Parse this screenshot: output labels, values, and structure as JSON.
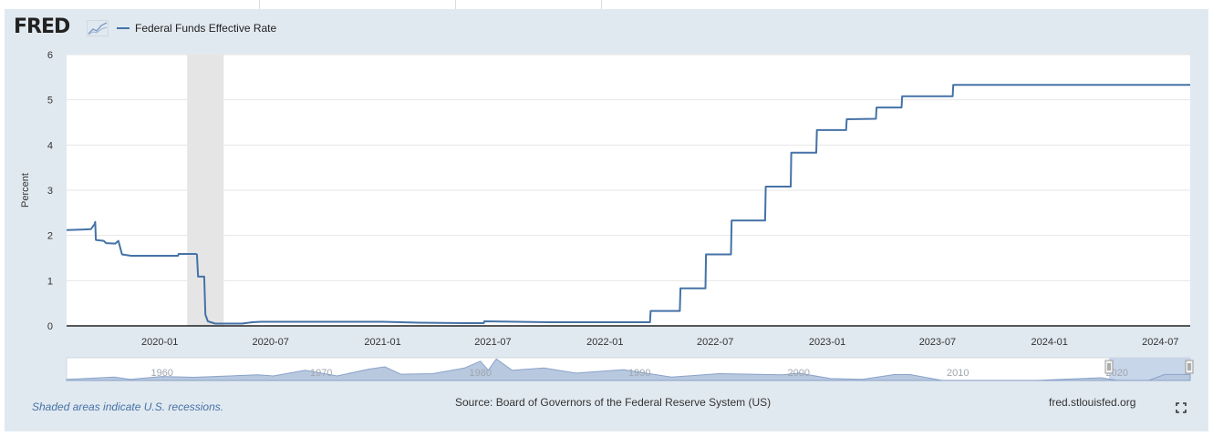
{
  "header": {
    "logo_text": "FRED",
    "logo_icon": "fred-chart-icon"
  },
  "chart_data": {
    "type": "line",
    "title": "",
    "xlabel": "",
    "ylabel": "Percent",
    "ylim": [
      0,
      6
    ],
    "y_ticks": [
      "0",
      "1",
      "2",
      "3",
      "4",
      "5",
      "6"
    ],
    "x_ticks": [
      "2020-01",
      "2020-07",
      "2021-01",
      "2021-07",
      "2022-01",
      "2022-07",
      "2023-01",
      "2023-07",
      "2024-01",
      "2024-07"
    ],
    "series": [
      {
        "name": "Federal Funds Effective Rate",
        "color": "#4572a7",
        "points": [
          [
            "2019-08-01",
            2.12
          ],
          [
            "2019-08-25",
            2.13
          ],
          [
            "2019-09-10",
            2.14
          ],
          [
            "2019-09-16",
            2.25
          ],
          [
            "2019-09-17",
            2.3
          ],
          [
            "2019-09-18",
            1.9
          ],
          [
            "2019-10-01",
            1.88
          ],
          [
            "2019-10-05",
            1.83
          ],
          [
            "2019-10-20",
            1.82
          ],
          [
            "2019-10-25",
            1.88
          ],
          [
            "2019-10-31",
            1.58
          ],
          [
            "2019-11-15",
            1.55
          ],
          [
            "2019-12-15",
            1.55
          ],
          [
            "2020-01-31",
            1.55
          ],
          [
            "2020-02-01",
            1.59
          ],
          [
            "2020-02-29",
            1.59
          ],
          [
            "2020-03-02",
            1.58
          ],
          [
            "2020-03-04",
            1.09
          ],
          [
            "2020-03-14",
            1.09
          ],
          [
            "2020-03-16",
            0.25
          ],
          [
            "2020-03-20",
            0.1
          ],
          [
            "2020-04-01",
            0.05
          ],
          [
            "2020-05-15",
            0.05
          ],
          [
            "2020-06-01",
            0.08
          ],
          [
            "2020-06-15",
            0.09
          ],
          [
            "2020-09-30",
            0.09
          ],
          [
            "2020-10-15",
            0.09
          ],
          [
            "2021-01-01",
            0.09
          ],
          [
            "2021-03-01",
            0.07
          ],
          [
            "2021-05-20",
            0.06
          ],
          [
            "2021-06-16",
            0.06
          ],
          [
            "2021-06-17",
            0.1
          ],
          [
            "2021-09-30",
            0.08
          ],
          [
            "2022-03-16",
            0.08
          ],
          [
            "2022-03-17",
            0.33
          ],
          [
            "2022-05-04",
            0.33
          ],
          [
            "2022-05-05",
            0.83
          ],
          [
            "2022-06-15",
            0.83
          ],
          [
            "2022-06-16",
            1.58
          ],
          [
            "2022-07-27",
            1.58
          ],
          [
            "2022-07-28",
            2.33
          ],
          [
            "2022-09-21",
            2.33
          ],
          [
            "2022-09-22",
            3.08
          ],
          [
            "2022-11-02",
            3.08
          ],
          [
            "2022-11-03",
            3.83
          ],
          [
            "2022-12-14",
            3.83
          ],
          [
            "2022-12-15",
            4.33
          ],
          [
            "2023-02-01",
            4.33
          ],
          [
            "2023-02-02",
            4.57
          ],
          [
            "2023-03-22",
            4.58
          ],
          [
            "2023-03-23",
            4.83
          ],
          [
            "2023-05-03",
            4.83
          ],
          [
            "2023-05-04",
            5.08
          ],
          [
            "2023-07-26",
            5.08
          ],
          [
            "2023-07-27",
            5.33
          ],
          [
            "2024-08-19",
            5.33
          ]
        ]
      }
    ],
    "recessions": [
      [
        "2020-02-15",
        "2020-04-15"
      ]
    ],
    "navigator": {
      "labels": [
        "1960",
        "1970",
        "1980",
        "1990",
        "2000",
        "2010",
        "2020"
      ]
    }
  },
  "footer": {
    "recession_note": "Shaded areas indicate U.S. recessions.",
    "source": "Source: Board of Governors of the Federal Reserve System (US)",
    "site": "fred.stlouisfed.org"
  },
  "colors": {
    "frame_bg": "#e1e9f0",
    "line": "#4572a7",
    "recession": "#e5e5e5",
    "navigator_fill": "#b8c8df",
    "navigator_line": "#8aa3c9"
  }
}
